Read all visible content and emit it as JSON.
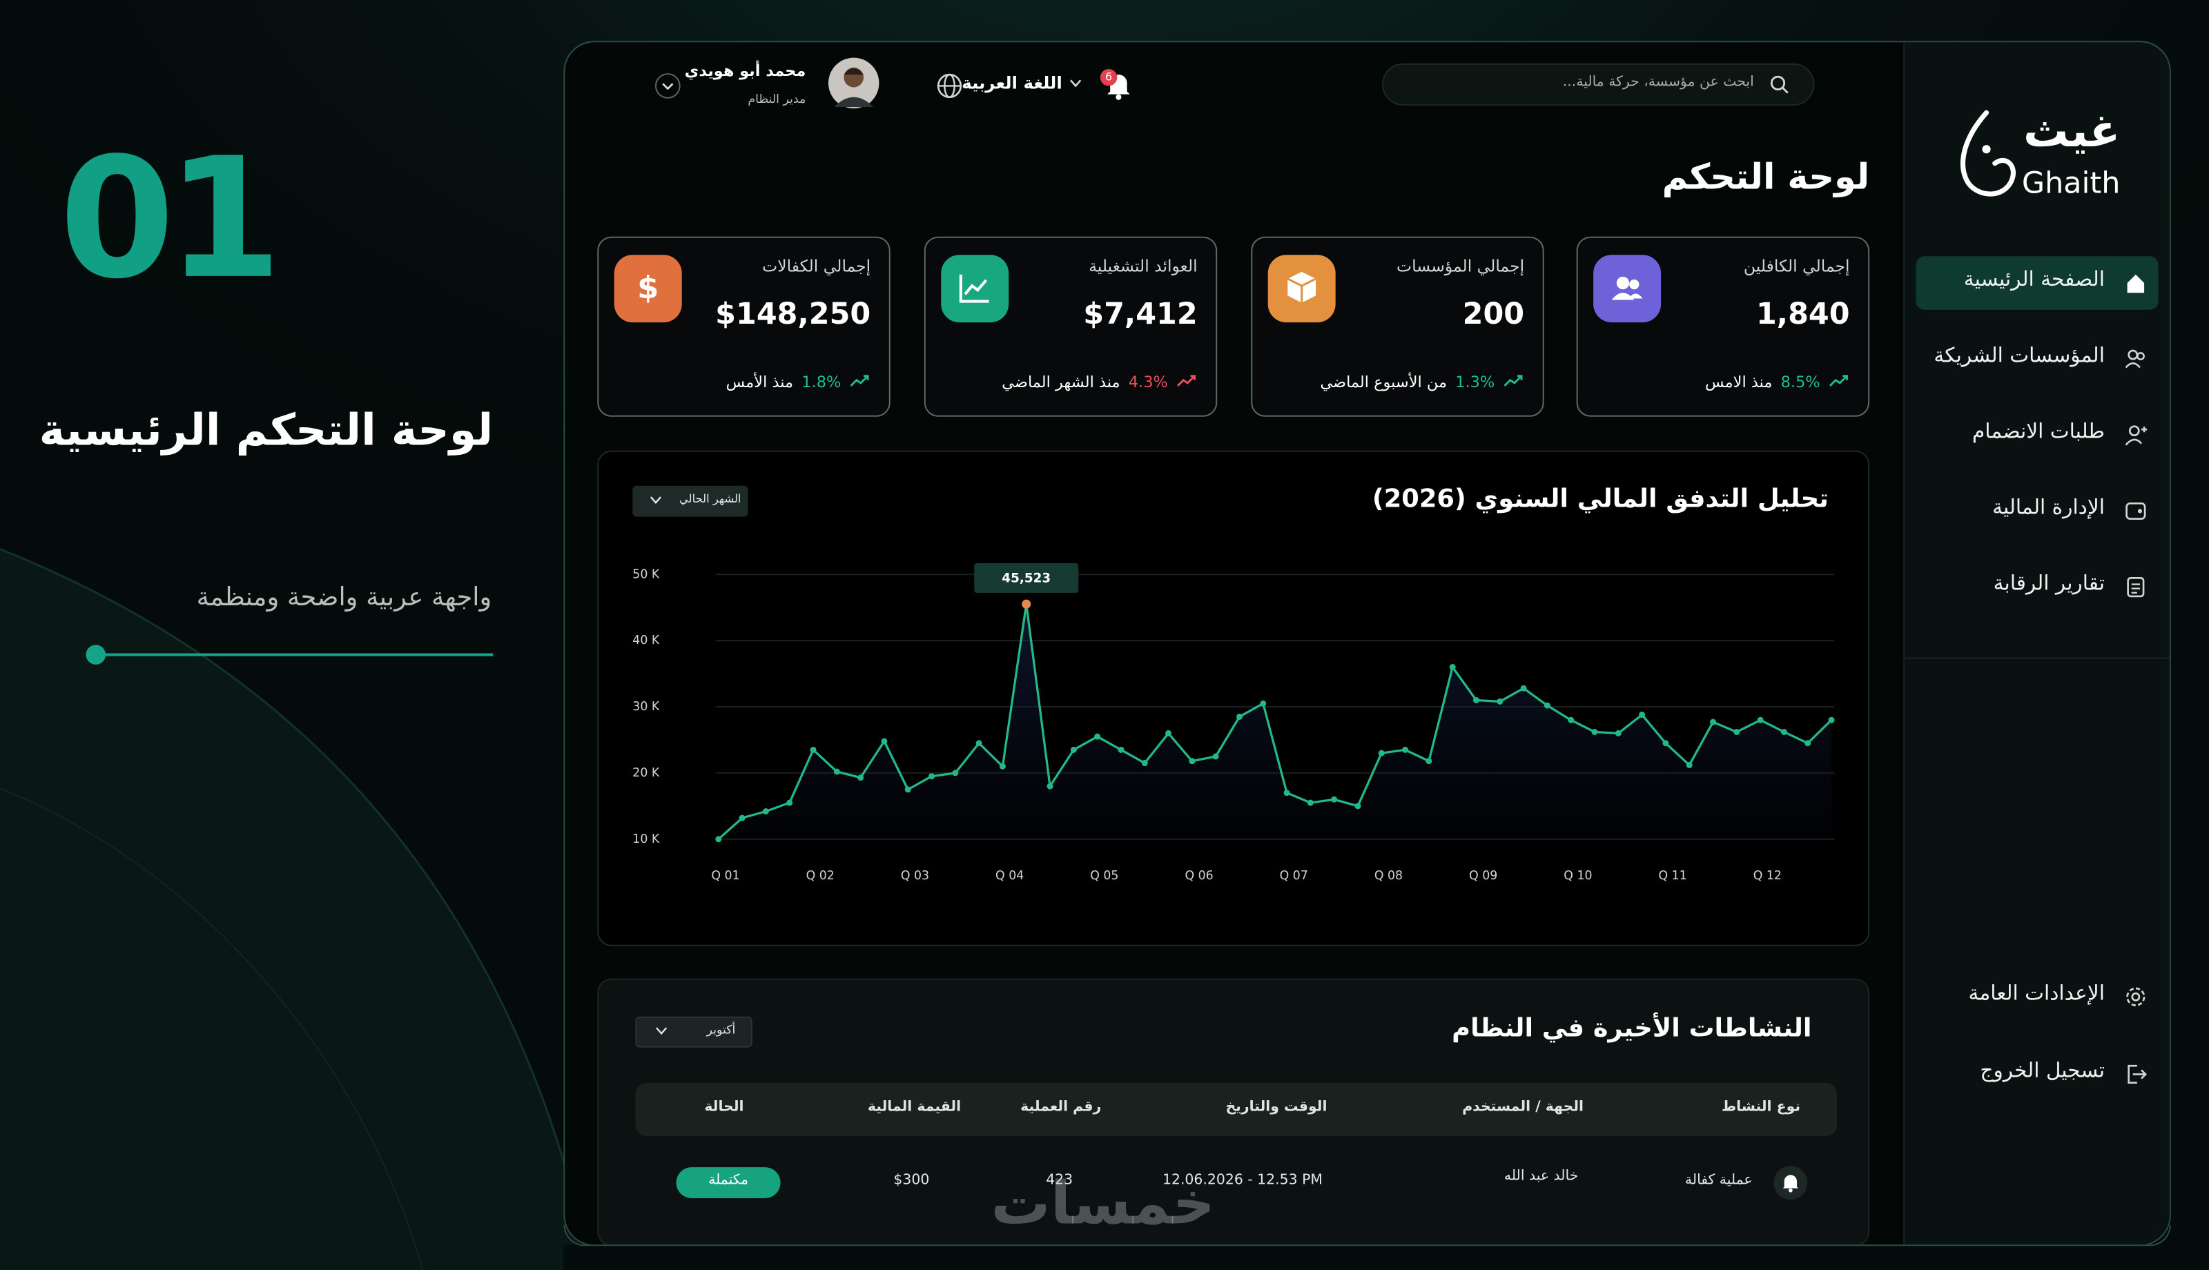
{
  "brand": {
    "number": "01",
    "title": "لوحة التحكم الرئيسية",
    "subtitle": "واجهة عربية واضحة ومنظمة"
  },
  "sidebar": {
    "logo_ar": "غيث",
    "logo_en": "Ghaith",
    "nav": [
      "الصفحة الرئيسية",
      "المؤسسات الشريكة",
      "طلبات الانضمام",
      "الإدارة المالية",
      "تقارير الرقابة"
    ],
    "bottom": [
      "الإعدادات العامة",
      "تسجيل الخروج"
    ]
  },
  "topbar": {
    "search_placeholder": "ابحث عن مؤسسة، حركة مالية...",
    "notifications": "6",
    "language": "اللغة العربية",
    "user_name": "محمد أبو هويدي",
    "user_role": "مدير النظام"
  },
  "page_title": "لوحة التحكم",
  "stats": [
    {
      "title": "إجمالي الكافلين",
      "value": "1,840",
      "change": "8.5%",
      "period": "منذ الامس"
    },
    {
      "title": "إجمالي المؤسسات",
      "value": "200",
      "change": "1.3%",
      "period": "من الأسبوع الماضي"
    },
    {
      "title": "العوائد التشغيلية",
      "value": "$7,412",
      "change": "4.3%",
      "period": "منذ الشهر الماضي"
    },
    {
      "title": "إجمالي الكفالات",
      "value": "$148,250",
      "change": "1.8%",
      "period": "منذ الأمس"
    }
  ],
  "chart_data": {
    "type": "line",
    "title": "تحليل التدفق المالي السنوي (2026)",
    "filter": "الشهر الحالي",
    "categories": [
      "Q 01",
      null,
      null,
      null,
      "Q 02",
      null,
      null,
      null,
      "Q 03",
      null,
      null,
      null,
      "Q 04",
      null,
      null,
      null,
      "Q 05",
      null,
      null,
      null,
      "Q 06",
      null,
      null,
      null,
      "Q 07",
      null,
      null,
      null,
      "Q 08",
      null,
      null,
      null,
      "Q 09",
      null,
      null,
      null,
      "Q 10",
      null,
      null,
      null,
      "Q 11",
      null,
      null,
      null,
      "Q 12",
      null,
      null,
      null
    ],
    "values": [
      10000,
      13200,
      14200,
      15500,
      23500,
      20200,
      19300,
      24800,
      17500,
      19500,
      20000,
      24500,
      21000,
      45523,
      18000,
      23500,
      25500,
      23500,
      21500,
      26000,
      21800,
      22500,
      28500,
      30500,
      17000,
      15500,
      16000,
      15000,
      23000,
      23500,
      21800,
      36000,
      31000,
      30800,
      32800,
      30200,
      28000,
      26200,
      26000,
      28800,
      24500,
      21200,
      27700,
      26200,
      28000,
      26200,
      24500,
      28000
    ],
    "value_labels": [
      null,
      null,
      null,
      null,
      null,
      null,
      null,
      null,
      null,
      null,
      null,
      null,
      null,
      "45,523",
      null,
      null,
      null,
      null,
      null,
      null,
      null,
      null,
      null,
      null,
      null,
      null,
      null,
      null,
      null,
      null,
      null,
      null,
      null,
      null,
      null,
      null,
      null,
      null,
      null,
      null,
      null,
      null,
      null,
      null,
      null,
      null,
      null,
      null
    ],
    "color": "#22b88a",
    "ylim": [
      10000,
      50000
    ],
    "yticks": [
      {
        "value": 10000,
        "label": "10 K"
      },
      {
        "value": 20000,
        "label": "20 K"
      },
      {
        "value": 30000,
        "label": "30 K"
      },
      {
        "value": 40000,
        "label": "40 K"
      },
      {
        "value": 50000,
        "label": "50 K"
      }
    ],
    "grid": true
  },
  "activity": {
    "title": "النشاطات الأخيرة في النظام",
    "filter": "أكتوبر",
    "columns": [
      "نوع النشاط",
      "الجهة / المستخدم",
      "الوقت والتاريخ",
      "رقم العملية",
      "القيمة المالية",
      "الحالة"
    ],
    "rows": [
      [
        "عملية كفالة",
        "خالد عبد الله",
        "12.06.2026 - 12.53 PM",
        "423",
        "$300",
        "مكتملة"
      ]
    ]
  },
  "watermark": "خمسات"
}
